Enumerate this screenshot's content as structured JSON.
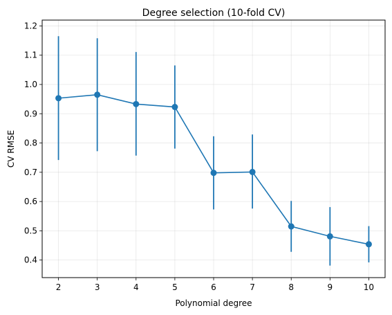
{
  "chart_data": {
    "type": "line",
    "title": "Degree selection (10-fold CV)",
    "xlabel": "Polynomial degree",
    "ylabel": "CV RMSE",
    "x": [
      2,
      3,
      4,
      5,
      6,
      7,
      8,
      9,
      10
    ],
    "xticks": [
      "2",
      "3",
      "4",
      "5",
      "6",
      "7",
      "8",
      "9",
      "10"
    ],
    "yticks": [
      "0.4",
      "0.5",
      "0.6",
      "0.7",
      "0.8",
      "0.9",
      "1.0",
      "1.1",
      "1.2"
    ],
    "ylim": [
      0.34,
      1.22
    ],
    "xlim": [
      1.58,
      10.42
    ],
    "grid": true,
    "series": [
      {
        "values": [
          0.953,
          0.965,
          0.933,
          0.923,
          0.698,
          0.701,
          0.515,
          0.481,
          0.454
        ],
        "err_low": [
          0.742,
          0.772,
          0.757,
          0.781,
          0.573,
          0.576,
          0.428,
          0.381,
          0.392
        ],
        "err_high": [
          1.165,
          1.158,
          1.111,
          1.065,
          0.823,
          0.829,
          0.602,
          0.581,
          0.516
        ],
        "color": "#1f77b4"
      }
    ]
  }
}
